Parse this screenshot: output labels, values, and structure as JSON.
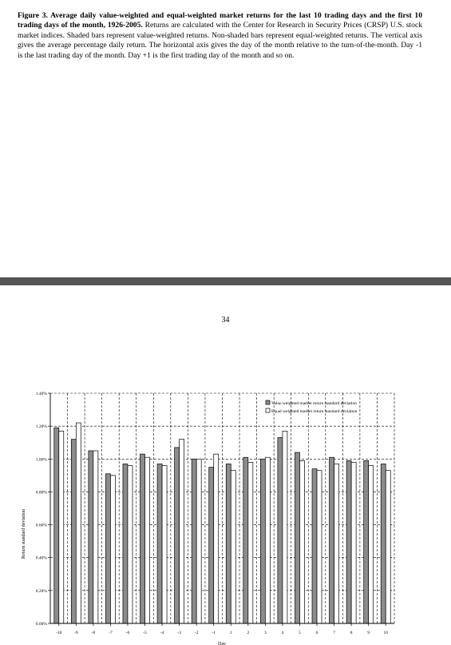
{
  "caption": {
    "lead": "Figure 3.  Average daily value-weighted and equal-weighted market returns for the last 10 trading days and the first 10 trading days of the month, 1926-2005.",
    "body": "Returns are calculated with the Center for Research in Security Prices (CRSP) U.S. stock market indices.  Shaded bars represent value-weighted returns.  Non-shaded bars represent equal-weighted returns.  The vertical axis gives the average percentage daily return.  The horizontal axis gives the day of the month relative to the turn-of-the-month.  Day -1 is the last trading day of the month.  Day +1 is the first trading day of the month and so on."
  },
  "page_number": "34",
  "chart_data": {
    "type": "bar",
    "categories": [
      "-10",
      "-9",
      "-8",
      "-7",
      "-6",
      "-5",
      "-4",
      "-3",
      "-2",
      "-1",
      "1",
      "2",
      "3",
      "4",
      "5",
      "6",
      "7",
      "8",
      "9",
      "10"
    ],
    "series": [
      {
        "name": "Value weighted market return standard deviation",
        "color": "#8c8c8c",
        "values": [
          1.19,
          1.12,
          1.05,
          0.91,
          0.97,
          1.03,
          0.97,
          1.07,
          1.0,
          0.95,
          0.97,
          1.01,
          1.0,
          1.13,
          1.04,
          0.94,
          1.01,
          0.99,
          0.99,
          0.97
        ]
      },
      {
        "name": "Equal weighted market return standard deviation",
        "color": "#ffffff",
        "values": [
          1.17,
          1.22,
          1.05,
          0.9,
          0.96,
          1.01,
          0.96,
          1.12,
          1.0,
          1.03,
          0.93,
          0.98,
          1.01,
          1.17,
          0.99,
          0.93,
          0.97,
          0.98,
          0.96,
          0.93
        ]
      }
    ],
    "y_ticks": [
      "0.00%",
      "0.20%",
      "0.40%",
      "0.60%",
      "0.80%",
      "1.00%",
      "1.20%",
      "1.40%"
    ],
    "ylim": [
      0,
      1.4
    ],
    "xlabel": "Day",
    "ylabel": "Return standard deviation",
    "grid": true,
    "legend_position": "top-right"
  }
}
